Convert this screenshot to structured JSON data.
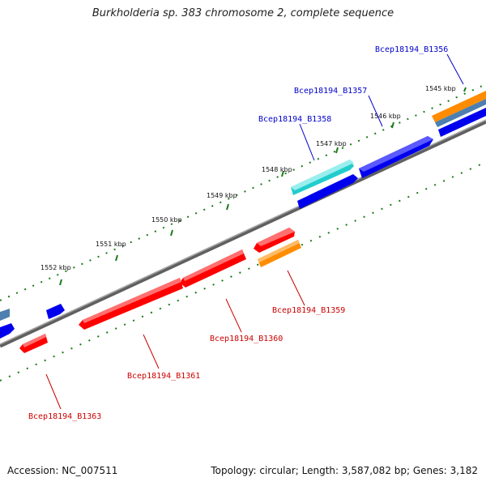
{
  "title": "Burkholderia sp. 383 chromosome 2, complete sequence",
  "accession_text": "Accession: NC_007511",
  "summary_text": "Topology: circular; Length: 3,587,082 bp; Genes: 3,182",
  "kbp_labels": [
    "1545 kbp",
    "1546 kbp",
    "1547 kbp",
    "1548 kbp",
    "1549 kbp",
    "1550 kbp",
    "1551 kbp",
    "1552 kbp"
  ],
  "gene_labels_forward": [
    "Bcep18194_B1356",
    "Bcep18194_B1357",
    "Bcep18194_B1358"
  ],
  "gene_labels_reverse": [
    "Bcep18194_B1359",
    "Bcep18194_B1360",
    "Bcep18194_B1361",
    "Bcep18194_B1363"
  ],
  "colors": {
    "backbone": "#808080",
    "forward_gene": "#0000ee",
    "reverse_gene": "#ff0000",
    "highlight_cyan": "#22cccc",
    "highlight_orange": "#ff8c00",
    "steel": "#4d7fb0",
    "tick": "#1a7a1a",
    "forward_label": "#0000cc",
    "reverse_label": "#cc0000"
  }
}
